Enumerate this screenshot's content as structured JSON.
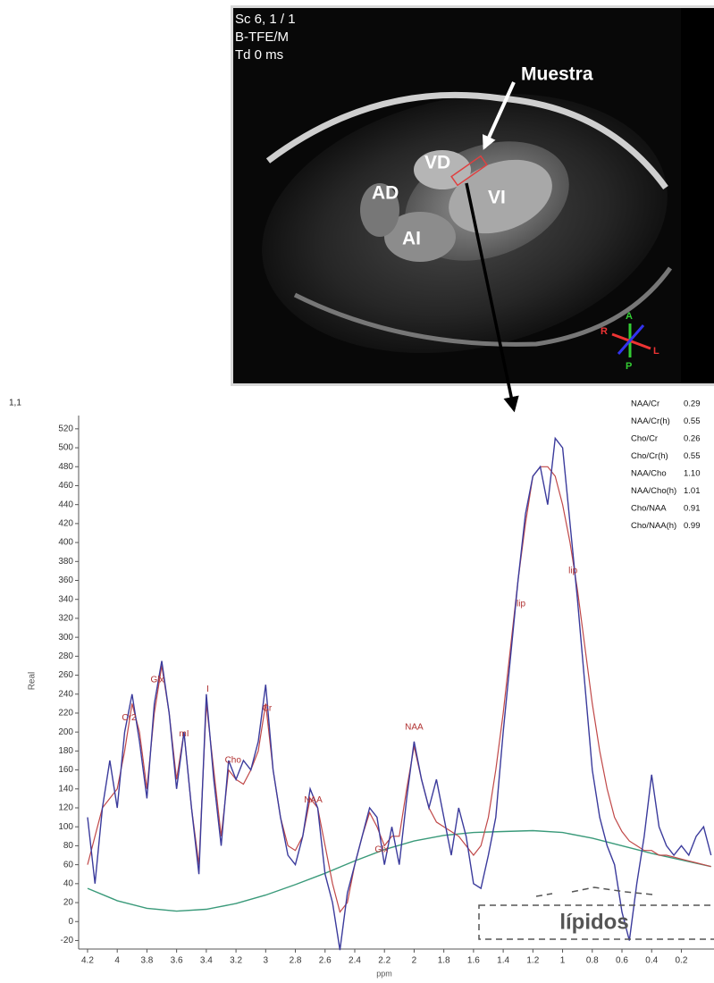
{
  "mri": {
    "header_lines": [
      "Sc 6, 1 / 1",
      "B-TFE/M",
      "Td 0 ms"
    ],
    "sample_label": "Muestra",
    "chamber_labels": [
      "VD",
      "VI",
      "AD",
      "AI"
    ],
    "orientation": [
      "A",
      "P",
      "R",
      "L"
    ]
  },
  "ratios": {
    "rows": [
      [
        "NAA/Cr",
        "0.29"
      ],
      [
        "NAA/Cr(h)",
        "0.55"
      ],
      [
        "Cho/Cr",
        "0.26"
      ],
      [
        "Cho/Cr(h)",
        "0.55"
      ],
      [
        "NAA/Cho",
        "1.10"
      ],
      [
        "NAA/Cho(h)",
        "1.01"
      ],
      [
        "Cho/NAA",
        "0.91"
      ],
      [
        "Cho/NAA(h)",
        "0.99"
      ]
    ]
  },
  "chart_data": {
    "type": "line",
    "corner_label": "1,1",
    "y_label": "Real",
    "x_label": "ppm",
    "xlim": [
      4.26,
      -0.02
    ],
    "ylim": [
      -29,
      534
    ],
    "xticks": [
      4.2,
      4,
      3.8,
      3.6,
      3.4,
      3.2,
      3,
      2.8,
      2.6,
      2.4,
      2.2,
      2,
      1.8,
      1.6,
      1.4,
      1.2,
      1,
      0.8,
      0.6,
      0.4,
      0.2
    ],
    "yticks": [
      -20,
      0,
      20,
      40,
      60,
      80,
      100,
      120,
      140,
      160,
      180,
      200,
      220,
      240,
      260,
      280,
      300,
      320,
      340,
      360,
      380,
      400,
      420,
      440,
      460,
      480,
      500,
      520
    ],
    "series": [
      {
        "color": "#3b3b9c",
        "x": [
          4.2,
          4.15,
          4.1,
          4.05,
          4,
          3.95,
          3.9,
          3.85,
          3.8,
          3.75,
          3.7,
          3.65,
          3.6,
          3.55,
          3.5,
          3.45,
          3.4,
          3.35,
          3.3,
          3.25,
          3.2,
          3.15,
          3.1,
          3.05,
          3,
          2.95,
          2.9,
          2.85,
          2.8,
          2.75,
          2.7,
          2.65,
          2.6,
          2.55,
          2.5,
          2.45,
          2.4,
          2.35,
          2.3,
          2.25,
          2.2,
          2.15,
          2.1,
          2.05,
          2,
          1.95,
          1.9,
          1.85,
          1.8,
          1.75,
          1.7,
          1.65,
          1.6,
          1.55,
          1.5,
          1.45,
          1.4,
          1.35,
          1.3,
          1.25,
          1.2,
          1.15,
          1.1,
          1.05,
          1,
          0.95,
          0.9,
          0.85,
          0.8,
          0.75,
          0.7,
          0.65,
          0.6,
          0.55,
          0.5,
          0.45,
          0.4,
          0.35,
          0.3,
          0.25,
          0.2,
          0.15,
          0.1,
          0.05,
          0
        ],
        "values": [
          110,
          40,
          120,
          170,
          120,
          200,
          240,
          190,
          130,
          230,
          275,
          220,
          140,
          200,
          120,
          50,
          240,
          150,
          80,
          170,
          150,
          170,
          160,
          190,
          250,
          160,
          110,
          70,
          60,
          90,
          140,
          120,
          50,
          20,
          -30,
          30,
          60,
          90,
          120,
          110,
          60,
          100,
          60,
          130,
          190,
          150,
          120,
          150,
          110,
          70,
          120,
          90,
          40,
          35,
          70,
          110,
          200,
          280,
          360,
          430,
          470,
          480,
          440,
          510,
          500,
          420,
          340,
          250,
          160,
          110,
          80,
          60,
          10,
          -20,
          40,
          90,
          155,
          100,
          80,
          70,
          80,
          70,
          90,
          100,
          70
        ]
      },
      {
        "color": "#c04848",
        "x": [
          4.2,
          4.15,
          4.1,
          4.05,
          4,
          3.95,
          3.9,
          3.85,
          3.8,
          3.75,
          3.7,
          3.65,
          3.6,
          3.55,
          3.5,
          3.45,
          3.4,
          3.35,
          3.3,
          3.25,
          3.2,
          3.15,
          3.1,
          3.05,
          3,
          2.95,
          2.9,
          2.85,
          2.8,
          2.75,
          2.7,
          2.65,
          2.6,
          2.55,
          2.5,
          2.45,
          2.4,
          2.35,
          2.3,
          2.25,
          2.2,
          2.15,
          2.1,
          2.05,
          2,
          1.95,
          1.9,
          1.85,
          1.8,
          1.75,
          1.7,
          1.65,
          1.6,
          1.55,
          1.5,
          1.45,
          1.4,
          1.35,
          1.3,
          1.25,
          1.2,
          1.15,
          1.1,
          1.05,
          1,
          0.95,
          0.9,
          0.85,
          0.8,
          0.75,
          0.7,
          0.65,
          0.6,
          0.55,
          0.5,
          0.45,
          0.4,
          0.35,
          0.3,
          0.25,
          0.2,
          0.15,
          0.1,
          0.05,
          0
        ],
        "values": [
          60,
          90,
          120,
          130,
          140,
          180,
          230,
          200,
          140,
          220,
          270,
          220,
          150,
          200,
          120,
          60,
          230,
          160,
          90,
          160,
          150,
          145,
          160,
          180,
          230,
          160,
          110,
          80,
          75,
          90,
          130,
          120,
          80,
          40,
          10,
          20,
          60,
          90,
          115,
          100,
          80,
          90,
          90,
          140,
          185,
          150,
          120,
          105,
          100,
          95,
          90,
          80,
          70,
          80,
          110,
          160,
          220,
          290,
          360,
          420,
          470,
          480,
          480,
          470,
          440,
          400,
          350,
          290,
          230,
          180,
          140,
          110,
          95,
          85,
          80,
          75,
          75,
          70,
          70,
          68,
          66,
          64,
          62,
          60,
          58
        ]
      },
      {
        "color": "#3a9a7a",
        "x": [
          4.2,
          4,
          3.8,
          3.6,
          3.4,
          3.2,
          3,
          2.8,
          2.6,
          2.4,
          2.2,
          2,
          1.8,
          1.6,
          1.4,
          1.2,
          1,
          0.8,
          0.6,
          0.4,
          0.2,
          0
        ],
        "values": [
          35,
          22,
          14,
          11,
          13,
          19,
          28,
          39,
          51,
          64,
          76,
          85,
          91,
          94,
          95,
          96,
          94,
          88,
          80,
          72,
          65,
          58
        ]
      }
    ],
    "annotations": [
      {
        "text": "Cr2",
        "x": 3.92,
        "y": 215
      },
      {
        "text": "Glx",
        "x": 3.73,
        "y": 255
      },
      {
        "text": "mI",
        "x": 3.55,
        "y": 198
      },
      {
        "text": "I",
        "x": 3.39,
        "y": 245
      },
      {
        "text": "Cho",
        "x": 3.22,
        "y": 170
      },
      {
        "text": "Cr",
        "x": 2.99,
        "y": 225
      },
      {
        "text": "NAA",
        "x": 2.68,
        "y": 128
      },
      {
        "text": "Glx",
        "x": 2.22,
        "y": 76
      },
      {
        "text": "NAA",
        "x": 2.0,
        "y": 205
      },
      {
        "text": "lip",
        "x": 1.28,
        "y": 335
      },
      {
        "text": "lip",
        "x": 0.93,
        "y": 370
      }
    ],
    "region_label": "lípidos"
  }
}
